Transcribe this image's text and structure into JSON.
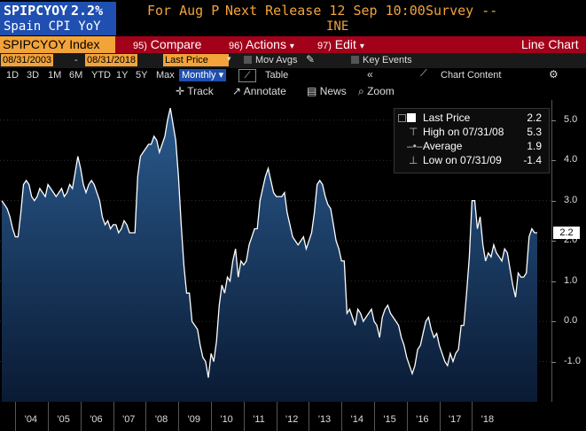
{
  "header": {
    "ticker": "SPIPCYOY",
    "value": "2.2%",
    "for_label": "For Aug P",
    "next_release": "Next Release 12 Sep 10:00",
    "survey": "Survey --",
    "name": "Spain CPI YoY",
    "source": "INE"
  },
  "menubar": {
    "index_tab": "SPIPCYOY Index",
    "compare_num": "95)",
    "compare": "Compare",
    "actions_num": "96)",
    "actions": "Actions",
    "edit_num": "97)",
    "edit": "Edit",
    "view": "Line Chart"
  },
  "daterow": {
    "start": "08/31/2003",
    "end": "08/31/2018",
    "security": "Last Price",
    "mov_avgs": "Mov Avgs",
    "key_events": "Key Events",
    "chart_content": "Chart Content"
  },
  "ranges": [
    "1D",
    "3D",
    "1M",
    "6M",
    "YTD",
    "1Y",
    "5Y",
    "Max"
  ],
  "period": "Monthly",
  "table_label": "Table",
  "tools": {
    "track": "Track",
    "annotate": "Annotate",
    "news": "News",
    "zoom": "Zoom"
  },
  "legend": {
    "last_price_label": "Last Price",
    "last_price_value": "2.2",
    "high_label": "High on 07/31/08",
    "high_value": "5.3",
    "average_label": "Average",
    "average_value": "1.9",
    "low_label": "Low on 07/31/09",
    "low_value": "-1.4"
  },
  "last_marker": "2.2",
  "colors": {
    "amber": "#f2a33a",
    "menu_red": "#a3001a",
    "ticker_blue": "#1f4fb0",
    "area_top": "#234a78",
    "area_bottom": "#0a1a33"
  },
  "chart_data": {
    "type": "area",
    "x_start": "2003-08",
    "x_end": "2018-08",
    "x_tick_labels": [
      "'04",
      "'05",
      "'06",
      "'07",
      "'08",
      "'09",
      "'10",
      "'11",
      "'12",
      "'13",
      "'14",
      "'15",
      "'16",
      "'17",
      "'18"
    ],
    "y_tick_labels": [
      "5.0",
      "4.0",
      "3.0",
      "2.0",
      "1.0",
      "0.0",
      "-1.0"
    ],
    "ylim": [
      -2.0,
      5.5
    ],
    "values": [
      3.0,
      2.9,
      2.8,
      2.6,
      2.3,
      2.1,
      2.1,
      2.7,
      3.4,
      3.5,
      3.4,
      3.1,
      3.0,
      3.1,
      3.3,
      3.2,
      3.1,
      3.4,
      3.3,
      3.2,
      3.1,
      3.2,
      3.3,
      3.1,
      3.2,
      3.4,
      3.3,
      3.7,
      4.1,
      3.8,
      3.4,
      3.2,
      3.4,
      3.5,
      3.4,
      3.2,
      3.0,
      2.6,
      2.4,
      2.5,
      2.3,
      2.4,
      2.4,
      2.2,
      2.3,
      2.5,
      2.4,
      2.2,
      2.2,
      2.2,
      3.6,
      4.1,
      4.2,
      4.3,
      4.4,
      4.4,
      4.6,
      4.5,
      4.2,
      4.4,
      4.6,
      5.0,
      5.3,
      4.9,
      4.5,
      3.6,
      2.4,
      1.4,
      0.7,
      0.7,
      0.0,
      -0.1,
      -0.2,
      -0.6,
      -0.9,
      -1.0,
      -1.4,
      -0.8,
      -1.0,
      -0.5,
      0.4,
      0.9,
      0.7,
      1.1,
      1.0,
      1.5,
      1.8,
      1.1,
      1.5,
      1.4,
      1.5,
      1.9,
      2.1,
      2.3,
      2.3,
      3.0,
      3.3,
      3.6,
      3.8,
      3.5,
      3.2,
      3.1,
      3.1,
      3.1,
      3.2,
      2.7,
      2.4,
      2.1,
      2.0,
      1.9,
      2.0,
      2.1,
      1.8,
      2.0,
      2.2,
      2.7,
      3.4,
      3.5,
      3.4,
      3.1,
      2.9,
      2.8,
      2.4,
      2.0,
      1.8,
      1.5,
      1.5,
      0.2,
      0.3,
      0.1,
      -0.1,
      0.3,
      0.2,
      0.0,
      0.1,
      0.2,
      0.3,
      0.0,
      -0.1,
      -0.4,
      0.1,
      0.3,
      0.4,
      0.2,
      0.1,
      0.0,
      -0.1,
      -0.4,
      -0.6,
      -0.9,
      -1.1,
      -1.3,
      -1.1,
      -0.7,
      -0.6,
      -0.3,
      0.0,
      0.1,
      -0.2,
      -0.4,
      -0.3,
      -0.6,
      -0.8,
      -1.0,
      -1.1,
      -0.8,
      -1.0,
      -0.8,
      -0.7,
      -0.1,
      -0.1,
      0.7,
      1.6,
      3.0,
      3.0,
      2.3,
      2.6,
      1.9,
      1.5,
      1.7,
      1.6,
      1.9,
      1.7,
      1.6,
      1.5,
      1.8,
      1.7,
      1.3,
      0.9,
      0.6,
      1.2,
      1.1,
      1.1,
      1.2,
      2.1,
      2.3,
      2.2,
      2.2
    ]
  }
}
